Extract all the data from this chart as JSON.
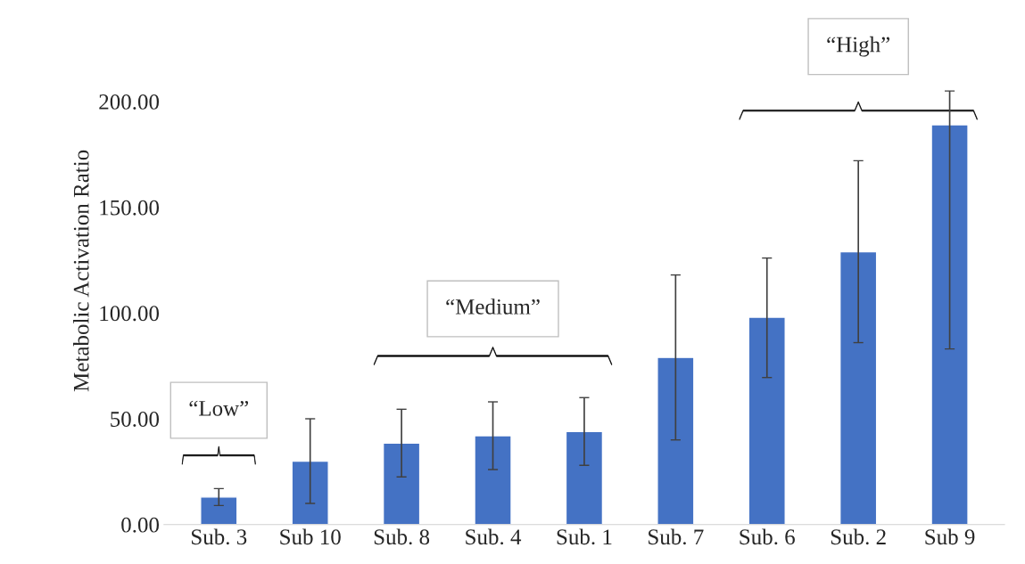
{
  "chart_data": {
    "type": "bar",
    "ylabel": "Metabolic Activation Ratio",
    "categories": [
      "Sub. 3",
      "Sub 10",
      "Sub. 8",
      "Sub. 4",
      "Sub. 1",
      "Sub. 7",
      "Sub. 6",
      "Sub. 2",
      "Sub 9"
    ],
    "values": [
      13,
      30,
      38.5,
      42,
      44,
      79,
      98,
      129,
      189
    ],
    "errors": [
      [
        9,
        17
      ],
      [
        10,
        50
      ],
      [
        22.5,
        54.5
      ],
      [
        26,
        58
      ],
      [
        28,
        60
      ],
      [
        40,
        118
      ],
      [
        69.5,
        126
      ],
      [
        86,
        172
      ],
      [
        83,
        205
      ]
    ],
    "color": "#4472c4",
    "ylim": [
      0,
      240
    ],
    "yticks": [
      {
        "value": 0,
        "label": "0.00"
      },
      {
        "value": 50,
        "label": "50.00"
      },
      {
        "value": 100,
        "label": "100.00"
      },
      {
        "value": 150,
        "label": "150.00"
      },
      {
        "value": 200,
        "label": "200.00"
      }
    ],
    "annotations": [
      "“Low”",
      "“Medium”",
      "“High”"
    ],
    "grid": false
  }
}
